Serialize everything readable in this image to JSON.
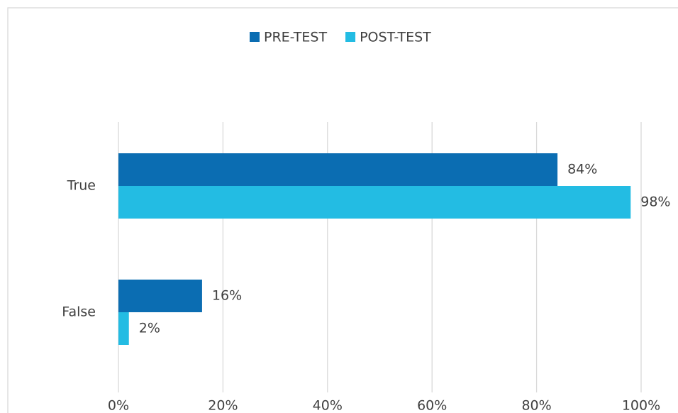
{
  "chart_data": {
    "type": "bar",
    "orientation": "horizontal",
    "categories": [
      "True",
      "False"
    ],
    "series": [
      {
        "name": "PRE-TEST",
        "color": "#0b6db2",
        "values": [
          84,
          16
        ],
        "value_labels": [
          "84%",
          "16%"
        ]
      },
      {
        "name": "POST-TEST",
        "color": "#23bce3",
        "values": [
          98,
          2
        ],
        "value_labels": [
          "98%",
          "2%"
        ]
      }
    ],
    "xlim": [
      0,
      100
    ],
    "xticks": [
      {
        "value": 0,
        "label": "0%"
      },
      {
        "value": 20,
        "label": "20%"
      },
      {
        "value": 40,
        "label": "40%"
      },
      {
        "value": 60,
        "label": "60%"
      },
      {
        "value": 80,
        "label": "80%"
      },
      {
        "value": 100,
        "label": "100%"
      }
    ],
    "grid": true,
    "legend": "top"
  }
}
